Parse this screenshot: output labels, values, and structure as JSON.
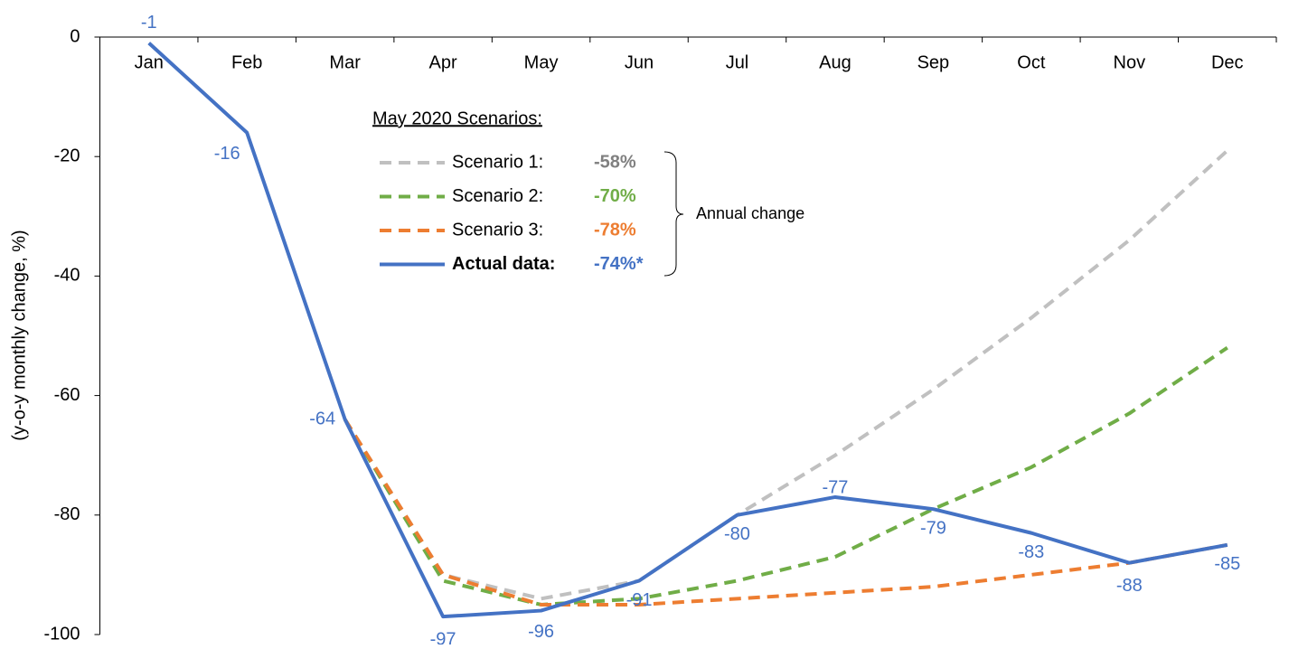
{
  "chart_data": {
    "type": "line",
    "y_label": "(y-o-y monthly change, %)",
    "categories": [
      "Jan",
      "Feb",
      "Mar",
      "Apr",
      "May",
      "Jun",
      "Jul",
      "Aug",
      "Sep",
      "Oct",
      "Nov",
      "Dec"
    ],
    "ylim": [
      -100,
      0
    ],
    "yticks": [
      -100,
      -80,
      -60,
      -40,
      -20,
      0
    ],
    "legend_title": "May 2020 Scenarios:",
    "legend_note": "Annual change",
    "series": [
      {
        "name": "Scenario 1:",
        "annual_change": "-58%",
        "color": "#c0c0c0",
        "dashed": true,
        "values": [
          null,
          null,
          -64,
          -90,
          -94,
          -91,
          -80,
          -70,
          -59,
          -47,
          -34,
          -19
        ]
      },
      {
        "name": "Scenario 2:",
        "annual_change": "-70%",
        "color": "#70ad47",
        "dashed": true,
        "values": [
          null,
          null,
          -64,
          -91,
          -95,
          -94,
          -91,
          -87,
          -79,
          -72,
          -63,
          -52
        ]
      },
      {
        "name": "Scenario 3:",
        "annual_change": "-78%",
        "color": "#ed7d31",
        "dashed": true,
        "values": [
          null,
          null,
          -64,
          -90,
          -95,
          -95,
          -94,
          -93,
          -92,
          -90,
          -88,
          -85
        ]
      },
      {
        "name": "Actual data:",
        "annual_change": "-74%*",
        "color": "#4472c4",
        "dashed": false,
        "data_labels": true,
        "values": [
          -1,
          -16,
          -64,
          -97,
          -96,
          -91,
          -80,
          -77,
          -79,
          -83,
          -88,
          -85
        ]
      }
    ]
  }
}
